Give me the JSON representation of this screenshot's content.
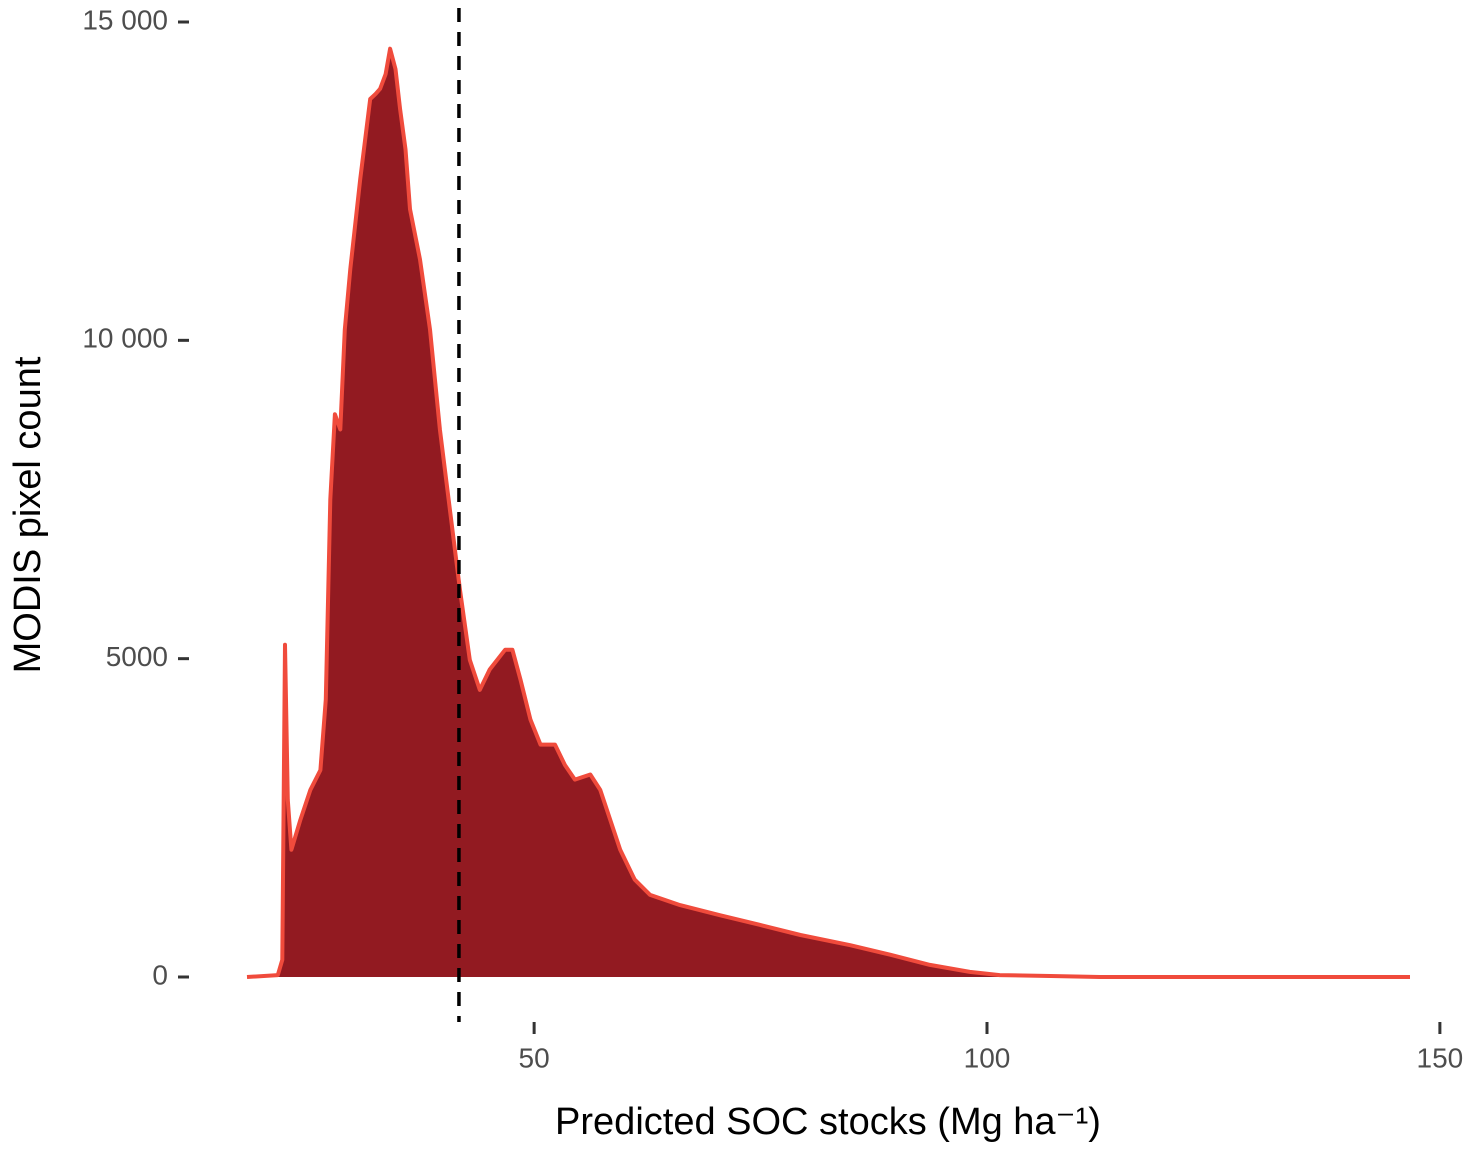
{
  "chart_data": {
    "type": "area",
    "xlabel": "Predicted SOC stocks (Mg  ha⁻¹)",
    "ylabel": "MODIS pixel count",
    "x": [
      18.3,
      21.7,
      22.2,
      22.5,
      22.8,
      23.2,
      24.2,
      25.3,
      26.4,
      27.0,
      27.5,
      28.0,
      28.6,
      29.1,
      29.7,
      30.8,
      31.9,
      32.5,
      33.0,
      33.6,
      34.1,
      34.7,
      35.2,
      35.8,
      36.3,
      37.4,
      38.5,
      39.6,
      40.7,
      41.8,
      42.9,
      44.0,
      45.1,
      46.8,
      47.6,
      48.5,
      49.6,
      50.7,
      52.3,
      53.4,
      54.5,
      56.2,
      57.3,
      58.4,
      59.5,
      61.1,
      62.8,
      66.1,
      70.5,
      74.9,
      79.4,
      84.9,
      89.3,
      93.7,
      98.1,
      101.4,
      107.0,
      112.5,
      146.7
    ],
    "values": [
      0,
      30,
      270,
      5220,
      2780,
      2000,
      2470,
      2940,
      3250,
      4360,
      7500,
      8840,
      8600,
      10170,
      11120,
      12530,
      13790,
      13870,
      13950,
      14180,
      14580,
      14260,
      13630,
      13000,
      12060,
      11270,
      10170,
      8600,
      7340,
      6090,
      4980,
      4510,
      4830,
      5140,
      5140,
      4670,
      4040,
      3650,
      3650,
      3330,
      3100,
      3180,
      2940,
      2470,
      2000,
      1530,
      1290,
      1130,
      970,
      820,
      660,
      500,
      350,
      190,
      80,
      30,
      15,
      0,
      0
    ],
    "color": "#921a21",
    "line_color": "#f04b3c",
    "reference_line": {
      "x": 41.7,
      "color": "#000000",
      "style": "dashed"
    },
    "xlim": [
      18.3,
      146.7
    ],
    "xticks": [
      50,
      100,
      150
    ],
    "ylim": [
      0,
      15000
    ],
    "yticks": [
      0,
      5000,
      {
        "value": 10000,
        "label": "10 000"
      },
      {
        "value": 15000,
        "label": "15 000"
      }
    ],
    "grid": false
  }
}
